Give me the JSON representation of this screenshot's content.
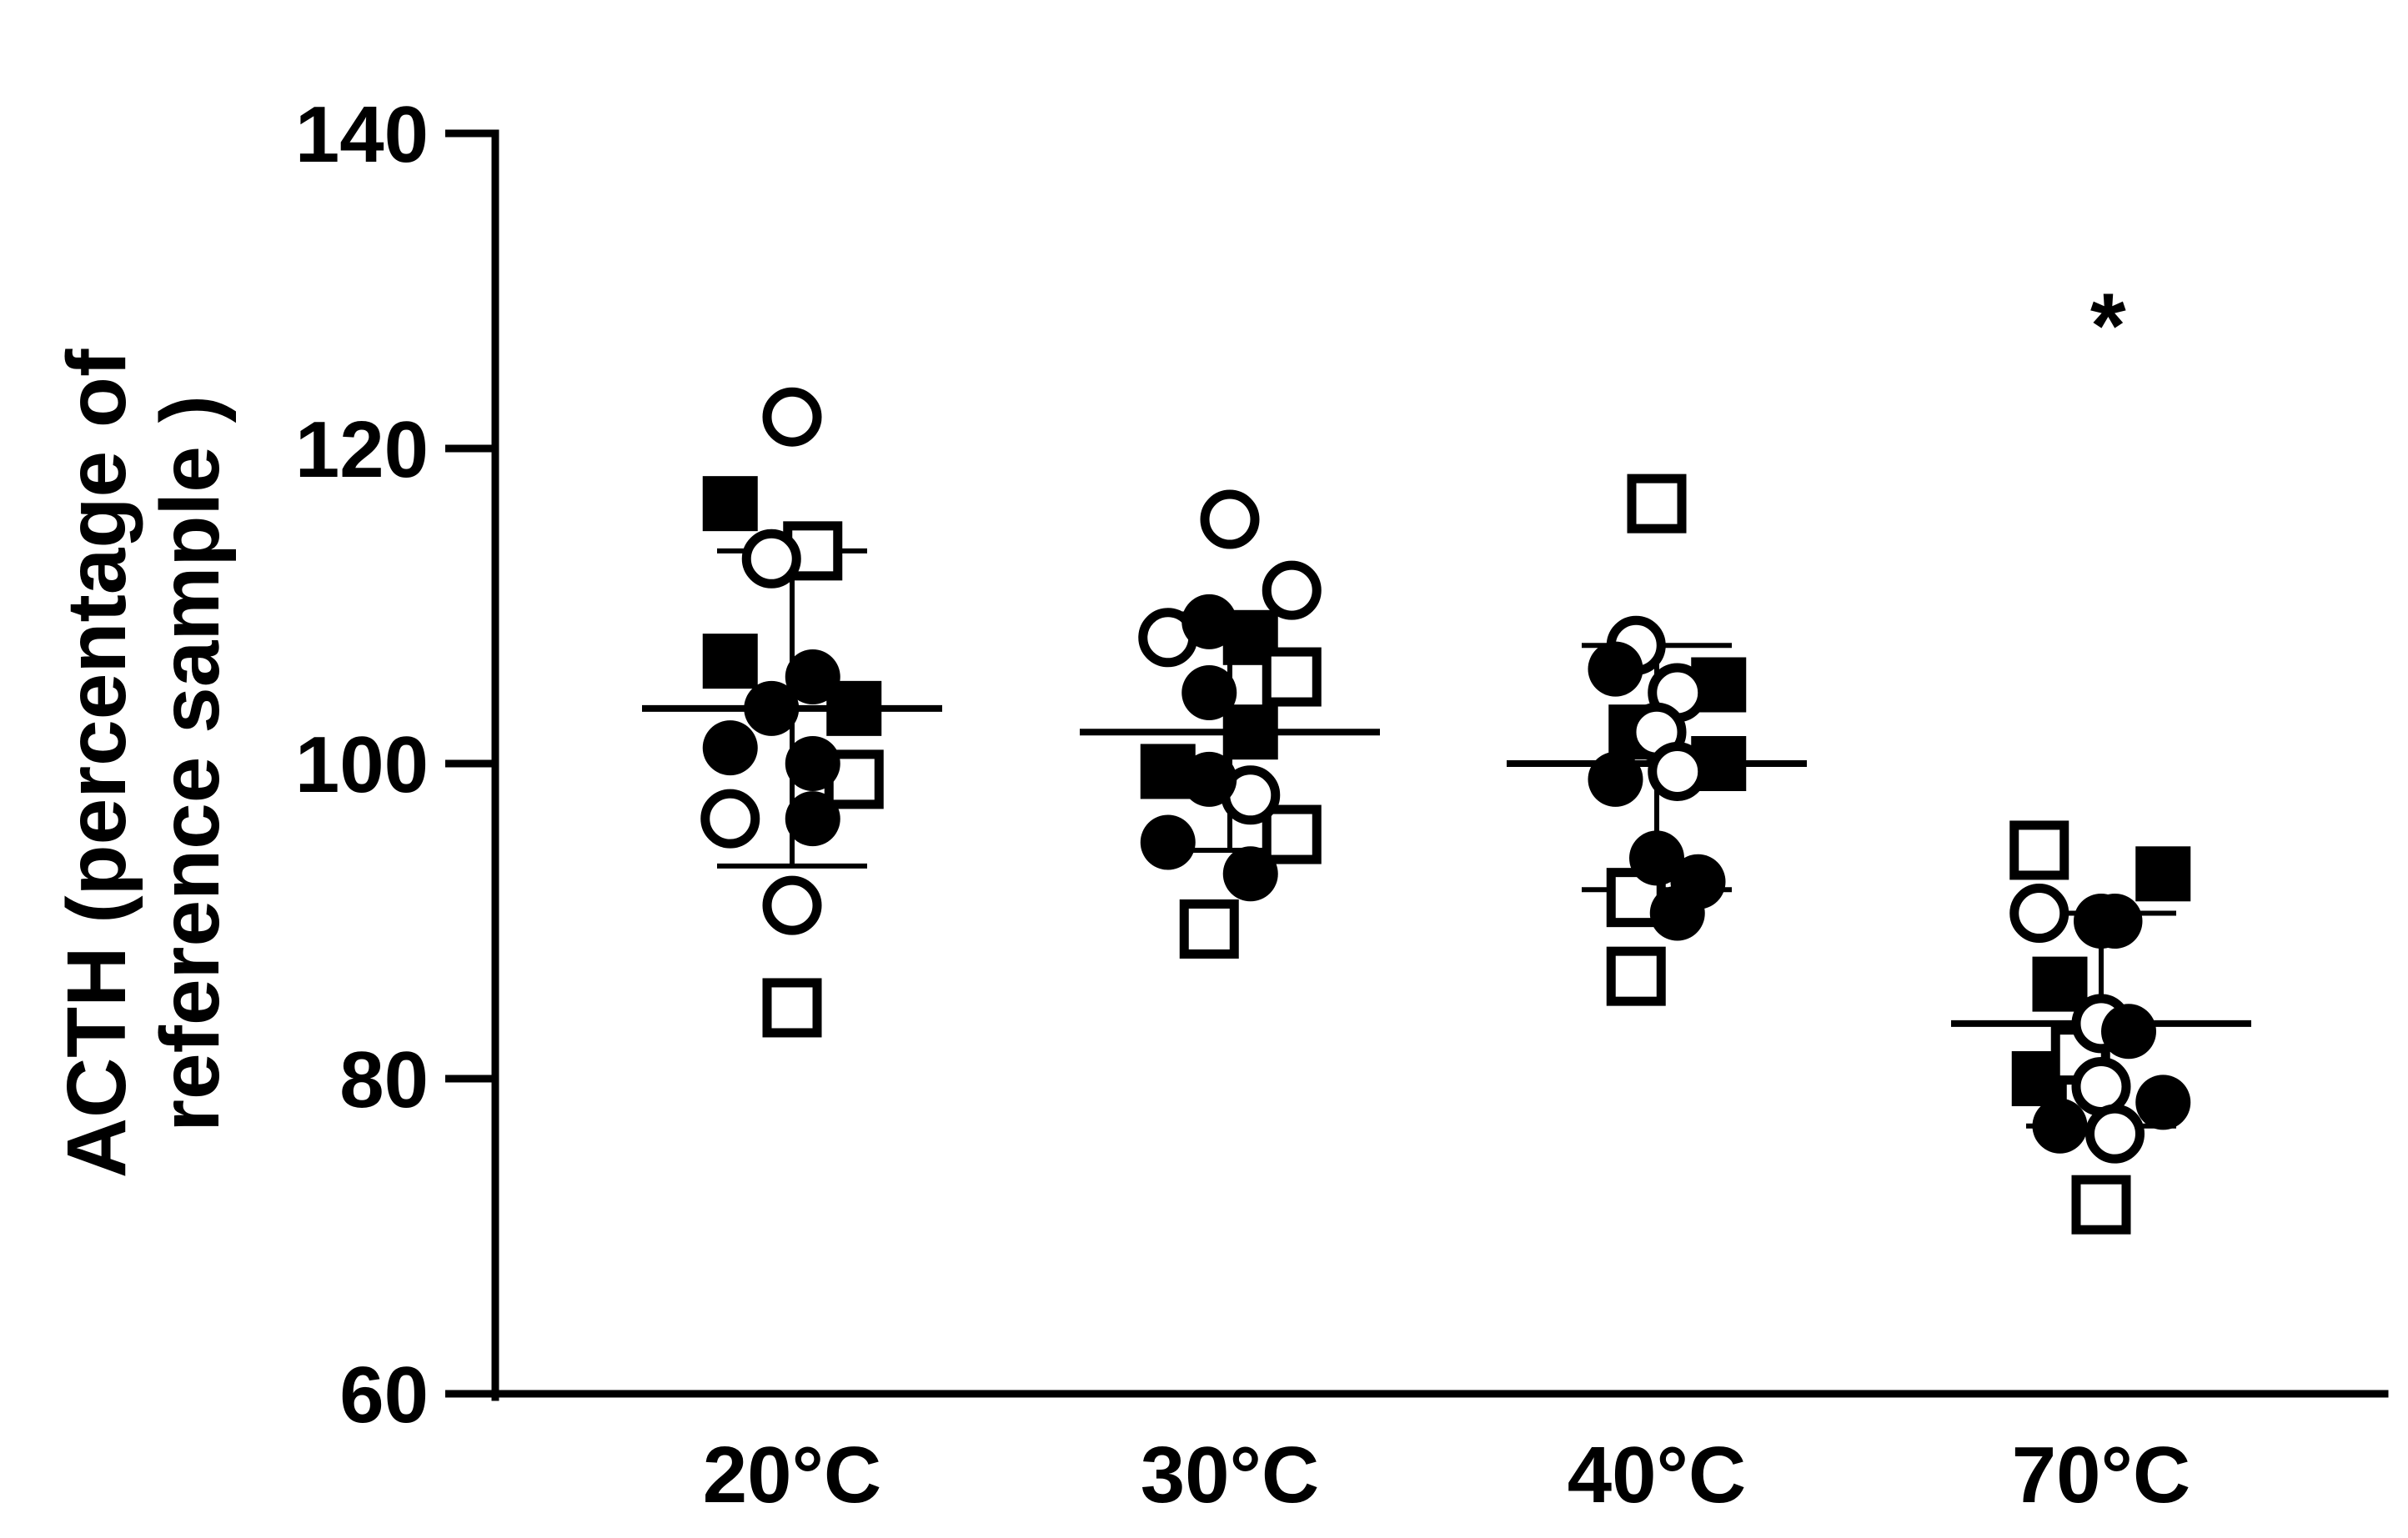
{
  "chart_data": {
    "type": "scatter",
    "ylabel_lines": [
      "ACTH (percentage of",
      "reference sample )"
    ],
    "xlabel": "",
    "categories": [
      "20°C",
      "30°C",
      "40°C",
      "70°C"
    ],
    "ylim": [
      60,
      140
    ],
    "yticks": [
      60,
      80,
      100,
      120,
      140
    ],
    "grid": false,
    "legend": "none",
    "marker_color": "#000000",
    "groups": [
      {
        "category": "20°C",
        "mean": 103.5,
        "sd_upper": 113.5,
        "sd_lower": 93.5,
        "points": [
          {
            "marker": "filled-square",
            "offset": -0.45,
            "y": 116.5
          },
          {
            "marker": "filled-square",
            "offset": -0.45,
            "y": 106.5
          },
          {
            "marker": "filled-square",
            "offset": 0.45,
            "y": 103.5
          },
          {
            "marker": "open-square",
            "offset": 0.15,
            "y": 113.5
          },
          {
            "marker": "open-square",
            "offset": 0.45,
            "y": 99.0
          },
          {
            "marker": "open-square",
            "offset": 0.0,
            "y": 84.5
          },
          {
            "marker": "open-circle",
            "offset": 0.0,
            "y": 122.0
          },
          {
            "marker": "open-circle",
            "offset": -0.15,
            "y": 113.0
          },
          {
            "marker": "open-circle",
            "offset": -0.45,
            "y": 96.5
          },
          {
            "marker": "open-circle",
            "offset": 0.0,
            "y": 91.0
          },
          {
            "marker": "filled-circle",
            "offset": 0.15,
            "y": 105.5
          },
          {
            "marker": "filled-circle",
            "offset": -0.15,
            "y": 103.5
          },
          {
            "marker": "filled-circle",
            "offset": -0.45,
            "y": 101.0
          },
          {
            "marker": "filled-circle",
            "offset": 0.15,
            "y": 100.0
          },
          {
            "marker": "filled-circle",
            "offset": 0.15,
            "y": 96.5
          }
        ]
      },
      {
        "category": "30°C",
        "mean": 102.0,
        "sd_upper": 109.5,
        "sd_lower": 94.5,
        "points": [
          {
            "marker": "filled-square",
            "offset": 0.15,
            "y": 108.0
          },
          {
            "marker": "filled-square",
            "offset": 0.15,
            "y": 102.0
          },
          {
            "marker": "filled-square",
            "offset": -0.45,
            "y": 99.5
          },
          {
            "marker": "open-square",
            "offset": 0.45,
            "y": 105.5
          },
          {
            "marker": "open-square",
            "offset": 0.45,
            "y": 95.5
          },
          {
            "marker": "open-square",
            "offset": -0.15,
            "y": 89.5
          },
          {
            "marker": "open-circle",
            "offset": 0.0,
            "y": 115.5
          },
          {
            "marker": "open-circle",
            "offset": 0.45,
            "y": 111.0
          },
          {
            "marker": "open-circle",
            "offset": -0.45,
            "y": 108.0
          },
          {
            "marker": "open-circle",
            "offset": 0.15,
            "y": 98.0
          },
          {
            "marker": "filled-circle",
            "offset": -0.15,
            "y": 109.0
          },
          {
            "marker": "filled-circle",
            "offset": -0.15,
            "y": 104.5
          },
          {
            "marker": "filled-circle",
            "offset": -0.15,
            "y": 99.0
          },
          {
            "marker": "filled-circle",
            "offset": -0.45,
            "y": 95.0
          },
          {
            "marker": "filled-circle",
            "offset": 0.15,
            "y": 93.0
          }
        ]
      },
      {
        "category": "40°C",
        "mean": 100.0,
        "sd_upper": 107.5,
        "sd_lower": 92.0,
        "points": [
          {
            "marker": "filled-square",
            "offset": 0.45,
            "y": 105.0
          },
          {
            "marker": "filled-square",
            "offset": -0.15,
            "y": 102.0
          },
          {
            "marker": "filled-square",
            "offset": 0.45,
            "y": 100.0
          },
          {
            "marker": "open-square",
            "offset": 0.0,
            "y": 116.5
          },
          {
            "marker": "open-square",
            "offset": -0.15,
            "y": 91.5
          },
          {
            "marker": "open-square",
            "offset": -0.15,
            "y": 86.5
          },
          {
            "marker": "open-circle",
            "offset": -0.15,
            "y": 107.5
          },
          {
            "marker": "open-circle",
            "offset": 0.15,
            "y": 104.5
          },
          {
            "marker": "open-circle",
            "offset": 0.0,
            "y": 102.0
          },
          {
            "marker": "open-circle",
            "offset": 0.15,
            "y": 99.5
          },
          {
            "marker": "filled-circle",
            "offset": -0.3,
            "y": 106.0
          },
          {
            "marker": "filled-circle",
            "offset": -0.3,
            "y": 99.0
          },
          {
            "marker": "filled-circle",
            "offset": 0.0,
            "y": 94.0
          },
          {
            "marker": "filled-circle",
            "offset": 0.3,
            "y": 92.5
          },
          {
            "marker": "filled-circle",
            "offset": 0.15,
            "y": 90.5
          }
        ]
      },
      {
        "category": "70°C",
        "mean": 83.5,
        "sd_upper": 90.5,
        "sd_lower": 77.0,
        "points": [
          {
            "marker": "filled-square",
            "offset": 0.45,
            "y": 93.0
          },
          {
            "marker": "filled-square",
            "offset": -0.3,
            "y": 86.0
          },
          {
            "marker": "filled-square",
            "offset": -0.45,
            "y": 80.0
          },
          {
            "marker": "open-square",
            "offset": -0.45,
            "y": 94.5
          },
          {
            "marker": "open-square",
            "offset": -0.15,
            "y": 81.5
          },
          {
            "marker": "open-square",
            "offset": 0.0,
            "y": 72.0
          },
          {
            "marker": "open-circle",
            "offset": -0.45,
            "y": 90.5
          },
          {
            "marker": "open-circle",
            "offset": 0.0,
            "y": 83.5
          },
          {
            "marker": "open-circle",
            "offset": 0.0,
            "y": 79.5
          },
          {
            "marker": "open-circle",
            "offset": 0.1,
            "y": 76.5
          },
          {
            "marker": "filled-circle",
            "offset": 0.0,
            "y": 90.0
          },
          {
            "marker": "filled-circle",
            "offset": 0.1,
            "y": 90.0
          },
          {
            "marker": "filled-circle",
            "offset": 0.2,
            "y": 83.0
          },
          {
            "marker": "filled-circle",
            "offset": 0.45,
            "y": 78.5
          },
          {
            "marker": "filled-circle",
            "offset": -0.3,
            "y": 77.0
          }
        ]
      }
    ],
    "annotations": [
      {
        "text": "*",
        "category": "70°C",
        "offset": 0.05,
        "y": 129.5
      }
    ]
  }
}
